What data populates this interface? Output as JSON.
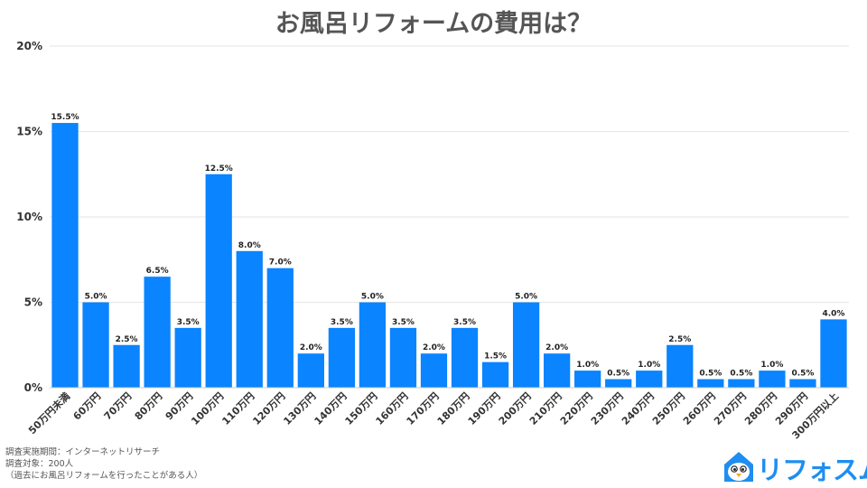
{
  "chart_data": {
    "type": "bar",
    "title": "お風呂リフォームの費用は？",
    "xlabel": "",
    "ylabel": "",
    "ylim": [
      0,
      20
    ],
    "yticks": [
      "0%",
      "5%",
      "10%",
      "15%",
      "20%"
    ],
    "ytick_values": [
      0,
      5,
      10,
      15,
      20
    ],
    "grid": true,
    "bar_color": "#0a84ff",
    "categories": [
      "50万円未満",
      "60万円",
      "70万円",
      "80万円",
      "90万円",
      "100万円",
      "110万円",
      "120万円",
      "130万円",
      "140万円",
      "150万円",
      "160万円",
      "170万円",
      "180万円",
      "190万円",
      "200万円",
      "210万円",
      "220万円",
      "230万円",
      "240万円",
      "250万円",
      "260万円",
      "270万円",
      "280万円",
      "290万円",
      "300万円以上"
    ],
    "values": [
      15.5,
      5.0,
      2.5,
      6.5,
      3.5,
      12.5,
      8.0,
      7.0,
      2.0,
      3.5,
      5.0,
      3.5,
      2.0,
      3.5,
      1.5,
      5.0,
      2.0,
      1.0,
      0.5,
      1.0,
      2.5,
      0.5,
      0.5,
      1.0,
      0.5,
      4.0
    ],
    "data_labels": [
      "15.5%",
      "5.0%",
      "2.5%",
      "6.5%",
      "3.5%",
      "12.5%",
      "8.0%",
      "7.0%",
      "2.0%",
      "3.5%",
      "5.0%",
      "3.5%",
      "2.0%",
      "3.5%",
      "1.5%",
      "5.0%",
      "2.0%",
      "1.0%",
      "0.5%",
      "1.0%",
      "2.5%",
      "0.5%",
      "0.5%",
      "1.0%",
      "0.5%",
      "4.0%"
    ]
  },
  "notes": {
    "method": "調査実施期間：インターネットリサーチ",
    "target": "調査対象：200人",
    "condition": "（過去にお風呂リフォームを行ったことがある人）"
  },
  "logo": {
    "text": "リフォスム",
    "color": "#1e8ef0",
    "icon": "house-bird-icon"
  }
}
